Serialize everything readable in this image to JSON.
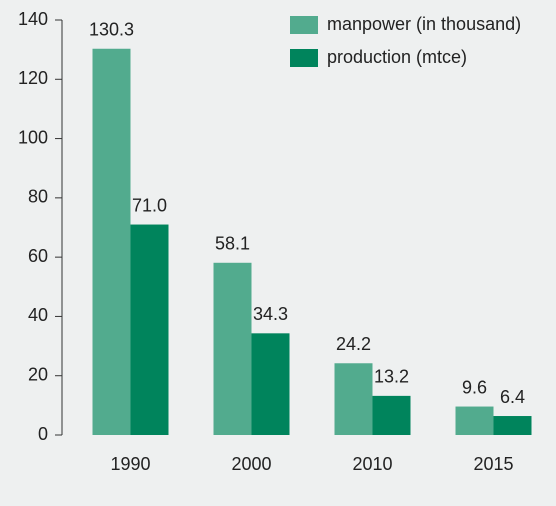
{
  "chart_data": {
    "type": "bar",
    "categories": [
      "1990",
      "2000",
      "2010",
      "2015"
    ],
    "series": [
      {
        "name": "manpower (in thousand)",
        "color": "#52ab8e",
        "values": [
          130.3,
          58.1,
          24.2,
          9.6
        ],
        "value_labels": [
          "130.3",
          "58.1",
          "24.2",
          "9.6"
        ]
      },
      {
        "name": "production (mtce)",
        "color": "#00845c",
        "values": [
          71,
          34.3,
          13.2,
          6.4
        ],
        "value_labels": [
          "71.0",
          "34.3",
          "13.2",
          "6.4"
        ]
      }
    ],
    "ylim": [
      0,
      140
    ],
    "yticks": [
      0,
      20,
      40,
      60,
      80,
      100,
      120,
      140
    ],
    "grid": false,
    "legend": "top-right"
  }
}
